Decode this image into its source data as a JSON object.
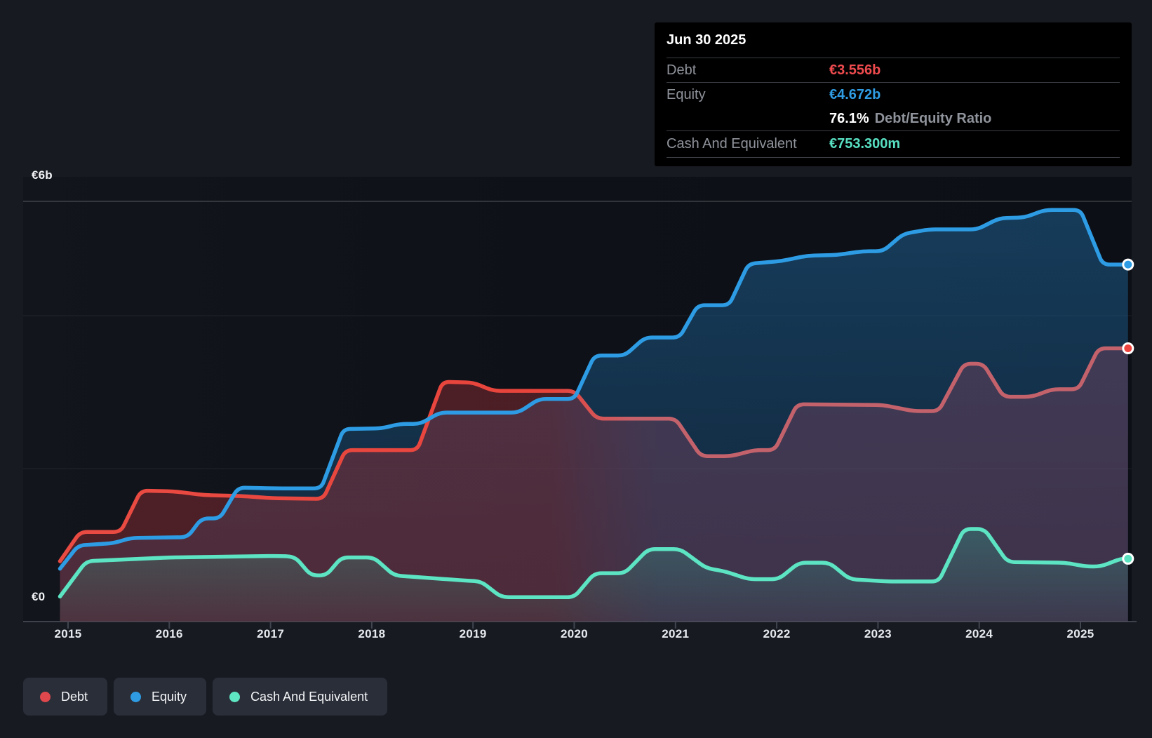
{
  "tooltip": {
    "date": "Jun 30 2025",
    "debt_label": "Debt",
    "debt_value": "€3.556b",
    "equity_label": "Equity",
    "equity_value": "€4.672b",
    "ratio_value": "76.1%",
    "ratio_label": "Debt/Equity Ratio",
    "cash_label": "Cash And Equivalent",
    "cash_value": "€753.300m"
  },
  "colors": {
    "debt": "#EF4B4F",
    "equity": "#2F9CE4",
    "cash": "#58E0C2",
    "debt_line_early": "#E8443C",
    "debt_line_late": "#C4626C",
    "equity_line": "#2D9CE4",
    "cash_line": "#5CE4C3"
  },
  "legend": {
    "items": [
      {
        "label": "Debt",
        "color": "#E0484D"
      },
      {
        "label": "Equity",
        "color": "#2E9BE2"
      },
      {
        "label": "Cash And Equivalent",
        "color": "#5FE6C2"
      }
    ]
  },
  "chart_data": {
    "type": "area",
    "unit": "EUR billions",
    "ylabel_top": "€6b",
    "ylabel_zero": "€0",
    "ylim": [
      0,
      6
    ],
    "x_ticks": [
      "2015",
      "2016",
      "2017",
      "2018",
      "2019",
      "2020",
      "2021",
      "2022",
      "2023",
      "2024",
      "2025"
    ],
    "x_range": [
      2014.92,
      2025.5
    ],
    "grid": "horizontal",
    "legend_position": "bottom-left",
    "series": [
      {
        "name": "Equity",
        "points": [
          [
            2014.92,
            0.62
          ],
          [
            2015.1,
            0.93
          ],
          [
            2015.45,
            0.96
          ],
          [
            2015.62,
            1.03
          ],
          [
            2016.18,
            1.04
          ],
          [
            2016.32,
            1.29
          ],
          [
            2016.5,
            1.29
          ],
          [
            2016.68,
            1.7
          ],
          [
            2017.05,
            1.69
          ],
          [
            2017.5,
            1.69
          ],
          [
            2017.72,
            2.48
          ],
          [
            2018.1,
            2.49
          ],
          [
            2018.28,
            2.55
          ],
          [
            2018.48,
            2.55
          ],
          [
            2018.67,
            2.7
          ],
          [
            2019.45,
            2.7
          ],
          [
            2019.65,
            2.88
          ],
          [
            2020.0,
            2.88
          ],
          [
            2020.2,
            3.46
          ],
          [
            2020.5,
            3.46
          ],
          [
            2020.7,
            3.7
          ],
          [
            2021.04,
            3.7
          ],
          [
            2021.22,
            4.13
          ],
          [
            2021.53,
            4.13
          ],
          [
            2021.72,
            4.68
          ],
          [
            2022.05,
            4.72
          ],
          [
            2022.3,
            4.79
          ],
          [
            2022.6,
            4.8
          ],
          [
            2022.85,
            4.85
          ],
          [
            2023.05,
            4.85
          ],
          [
            2023.25,
            5.08
          ],
          [
            2023.5,
            5.14
          ],
          [
            2023.98,
            5.14
          ],
          [
            2024.2,
            5.29
          ],
          [
            2024.45,
            5.3
          ],
          [
            2024.65,
            5.4
          ],
          [
            2025.0,
            5.4
          ],
          [
            2025.22,
            4.672
          ],
          [
            2025.47,
            4.672
          ]
        ]
      },
      {
        "name": "Debt",
        "points": [
          [
            2014.92,
            0.72
          ],
          [
            2015.12,
            1.11
          ],
          [
            2015.52,
            1.11
          ],
          [
            2015.72,
            1.66
          ],
          [
            2016.05,
            1.65
          ],
          [
            2016.35,
            1.6
          ],
          [
            2016.7,
            1.59
          ],
          [
            2017.0,
            1.56
          ],
          [
            2017.52,
            1.55
          ],
          [
            2017.74,
            2.2
          ],
          [
            2018.45,
            2.2
          ],
          [
            2018.7,
            3.11
          ],
          [
            2019.0,
            3.1
          ],
          [
            2019.2,
            2.99
          ],
          [
            2020.0,
            2.99
          ],
          [
            2020.22,
            2.62
          ],
          [
            2021.0,
            2.62
          ],
          [
            2021.25,
            2.12
          ],
          [
            2021.55,
            2.12
          ],
          [
            2021.78,
            2.2
          ],
          [
            2021.98,
            2.2
          ],
          [
            2022.2,
            2.81
          ],
          [
            2023.05,
            2.8
          ],
          [
            2023.35,
            2.72
          ],
          [
            2023.6,
            2.72
          ],
          [
            2023.85,
            3.35
          ],
          [
            2024.04,
            3.35
          ],
          [
            2024.24,
            2.91
          ],
          [
            2024.52,
            2.91
          ],
          [
            2024.72,
            3.01
          ],
          [
            2024.98,
            3.01
          ],
          [
            2025.18,
            3.556
          ],
          [
            2025.47,
            3.556
          ]
        ]
      },
      {
        "name": "Cash And Equivalent",
        "points": [
          [
            2014.92,
            0.25
          ],
          [
            2015.18,
            0.72
          ],
          [
            2016.0,
            0.77
          ],
          [
            2017.08,
            0.79
          ],
          [
            2017.24,
            0.78
          ],
          [
            2017.4,
            0.53
          ],
          [
            2017.55,
            0.53
          ],
          [
            2017.7,
            0.77
          ],
          [
            2018.02,
            0.77
          ],
          [
            2018.22,
            0.53
          ],
          [
            2018.95,
            0.46
          ],
          [
            2019.08,
            0.45
          ],
          [
            2019.28,
            0.24
          ],
          [
            2020.0,
            0.24
          ],
          [
            2020.2,
            0.56
          ],
          [
            2020.5,
            0.56
          ],
          [
            2020.73,
            0.88
          ],
          [
            2021.05,
            0.88
          ],
          [
            2021.3,
            0.63
          ],
          [
            2021.5,
            0.58
          ],
          [
            2021.72,
            0.48
          ],
          [
            2022.02,
            0.48
          ],
          [
            2022.22,
            0.7
          ],
          [
            2022.52,
            0.7
          ],
          [
            2022.72,
            0.48
          ],
          [
            2023.1,
            0.45
          ],
          [
            2023.6,
            0.45
          ],
          [
            2023.85,
            1.15
          ],
          [
            2024.05,
            1.15
          ],
          [
            2024.28,
            0.71
          ],
          [
            2024.85,
            0.7
          ],
          [
            2025.05,
            0.65
          ],
          [
            2025.2,
            0.65
          ],
          [
            2025.4,
            0.753
          ],
          [
            2025.47,
            0.753
          ]
        ],
        "end_values": {
          "Debt": "€3.556b",
          "Equity": "€4.672b",
          "Cash And Equivalent": "€753.300m"
        }
      }
    ]
  }
}
